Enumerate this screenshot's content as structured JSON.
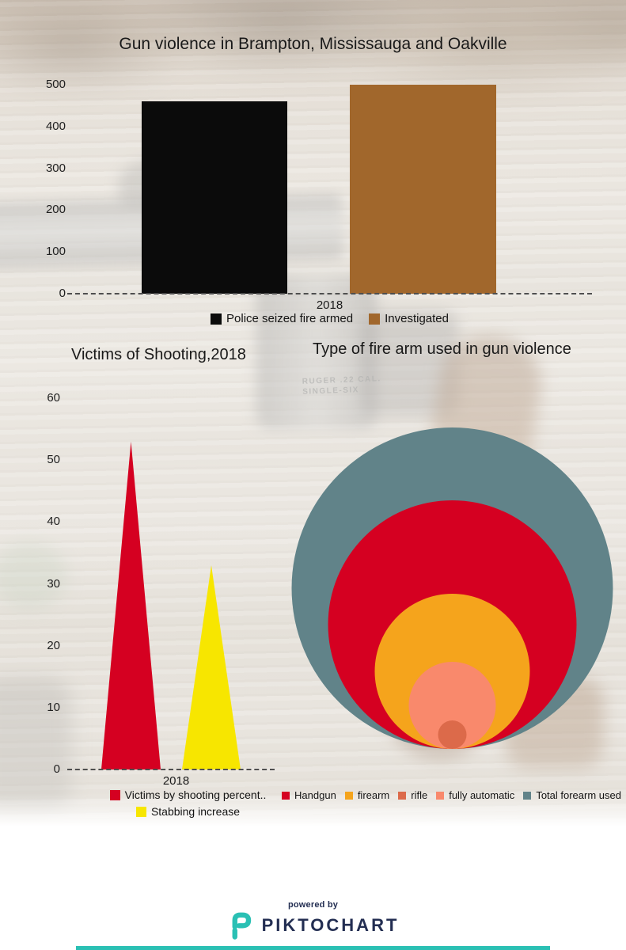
{
  "header": {
    "title": "Gun violence in Brampton, Mississauga and Oakville"
  },
  "background": {
    "engraving_line1": "RUGER .22 CAL.",
    "engraving_line2": "SINGLE-SIX"
  },
  "chart_data": [
    {
      "id": "police-seized-vs-investigated",
      "type": "bar",
      "title": "Gun violence in Brampton, Mississauga and Oakville",
      "categories": [
        "2018"
      ],
      "series": [
        {
          "name": "Police seized fire armed",
          "color": "#0b0b0b",
          "values": [
            460
          ]
        },
        {
          "name": "Investigated",
          "color": "#a1672c",
          "values": [
            500
          ]
        }
      ],
      "ylim": [
        0,
        500
      ],
      "yticks": [
        500,
        400,
        300,
        200,
        100,
        0
      ],
      "grid": false,
      "baseline_style": "dashed",
      "legend_position": "bottom"
    },
    {
      "id": "victims-of-shooting",
      "type": "area",
      "variant": "peak-triangles",
      "title": "Victims of Shooting,2018",
      "categories": [
        "2018"
      ],
      "series": [
        {
          "name": "Victims by shooting percent..",
          "color": "#d50021",
          "values": [
            53
          ]
        },
        {
          "name": "Stabbing increase",
          "color": "#f7e600",
          "values": [
            33
          ]
        }
      ],
      "ylim": [
        0,
        60
      ],
      "yticks": [
        60,
        50,
        40,
        30,
        20,
        10,
        0
      ],
      "grid": false,
      "baseline_style": "dashed",
      "legend_position": "bottom"
    },
    {
      "id": "type-of-firearm",
      "type": "pie",
      "variant": "concentric-bubbles",
      "title": "Type of fire arm used in gun violence",
      "series": [
        {
          "name": "Total forearm used",
          "color": "#618389",
          "radius_px": 203
        },
        {
          "name": "Handgun",
          "color": "#d50021",
          "radius_px": 157
        },
        {
          "name": "firearm",
          "color": "#f5a41c",
          "radius_px": 98
        },
        {
          "name": "fully automatic",
          "color": "#f9896c",
          "radius_px": 55
        },
        {
          "name": "rifle",
          "color": "#dc6a4a",
          "radius_px": 18
        }
      ],
      "legend_order": [
        "Handgun",
        "firearm",
        "rifle",
        "fully automatic",
        "Total forearm used"
      ],
      "legend_position": "bottom"
    }
  ],
  "footer": {
    "powered_by": "powered by",
    "brand": "PIKTOCHART",
    "brand_color": "#232e52",
    "icon_color": "#2ac0b4",
    "accent_bar_color": "#2ac0b4"
  }
}
